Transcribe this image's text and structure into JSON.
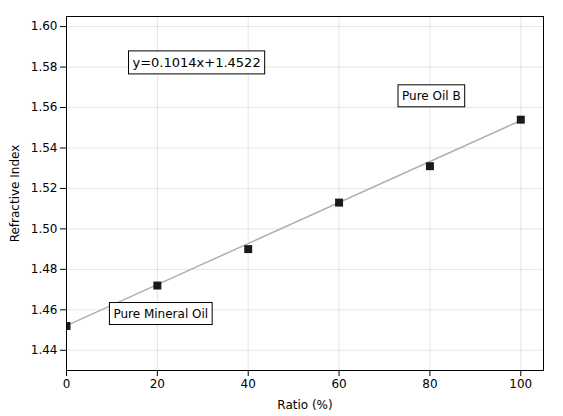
{
  "chart_data": {
    "type": "scatter",
    "xlabel": "Ratio (%)",
    "ylabel": "Refractive Index",
    "x": [
      0,
      20,
      40,
      60,
      80,
      100
    ],
    "series": [
      {
        "type": "scatter",
        "color": "#1a1a1a",
        "marker": "square",
        "values": [
          1.452,
          1.472,
          1.49,
          1.513,
          1.531,
          1.554
        ]
      },
      {
        "type": "line",
        "color": "#b0b0b0",
        "line_style": "solid",
        "x": [
          0,
          100
        ],
        "values": [
          1.4522,
          1.5536
        ]
      }
    ],
    "annotations": [
      "y=0.1014x+1.4522",
      "Pure Mineral Oil",
      "Pure Oil B"
    ],
    "xlim": [
      0,
      105
    ],
    "ylim": [
      1.43,
      1.605
    ],
    "xticks": [
      0,
      20,
      40,
      60,
      80,
      100
    ],
    "yticks": [
      1.44,
      1.46,
      1.48,
      {
        "value": 1.5,
        "label": "1.50"
      },
      1.52,
      1.54,
      1.56,
      1.58,
      {
        "value": 1.6,
        "label": "1.60"
      }
    ],
    "grid": true
  }
}
